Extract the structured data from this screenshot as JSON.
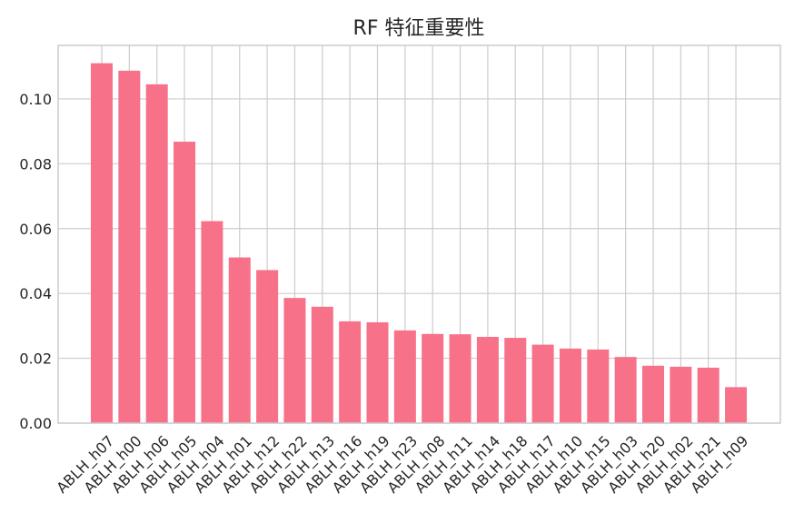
{
  "chart_data": {
    "type": "bar",
    "title": "RF 特征重要性",
    "xlabel": "",
    "ylabel": "",
    "categories": [
      "ABLH_h07",
      "ABLH_h00",
      "ABLH_h06",
      "ABLH_h05",
      "ABLH_h04",
      "ABLH_h01",
      "ABLH_h12",
      "ABLH_h22",
      "ABLH_h13",
      "ABLH_h16",
      "ABLH_h19",
      "ABLH_h23",
      "ABLH_h08",
      "ABLH_h11",
      "ABLH_h14",
      "ABLH_h18",
      "ABLH_h17",
      "ABLH_h10",
      "ABLH_h15",
      "ABLH_h03",
      "ABLH_h20",
      "ABLH_h02",
      "ABLH_h21",
      "ABLH_h09"
    ],
    "values": [
      0.111,
      0.1087,
      0.1045,
      0.0868,
      0.0623,
      0.0511,
      0.0472,
      0.0386,
      0.0359,
      0.0314,
      0.0311,
      0.0286,
      0.0275,
      0.0274,
      0.0266,
      0.0263,
      0.0242,
      0.023,
      0.0227,
      0.0204,
      0.0177,
      0.0174,
      0.0171,
      0.0111
    ],
    "yticks": [
      "0.00",
      "0.02",
      "0.04",
      "0.06",
      "0.08",
      "0.10"
    ],
    "ylim": [
      0,
      0.1165
    ],
    "grid": true,
    "bar_color": "#f77189",
    "grid_color": "#cccccc",
    "text_color": "#262626"
  }
}
